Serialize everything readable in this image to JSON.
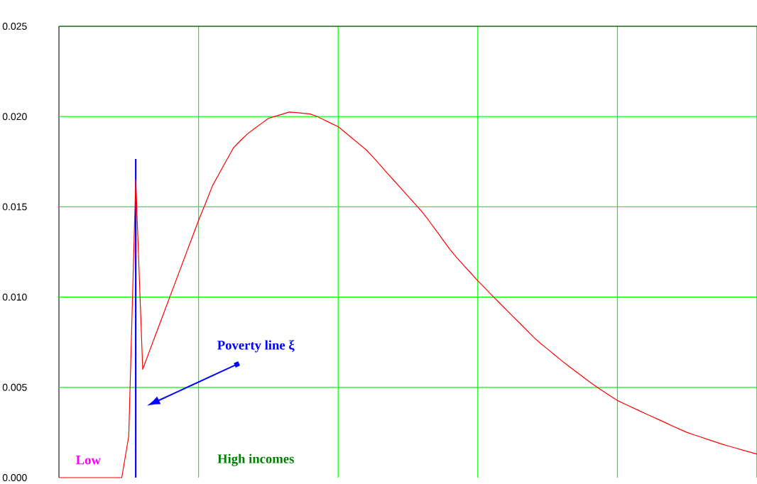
{
  "chart_data": {
    "type": "line",
    "categories": [
      null,
      null,
      null,
      null,
      null,
      null,
      null,
      null,
      null,
      null,
      null,
      null,
      null,
      null,
      null,
      null,
      null,
      null,
      null,
      null,
      null,
      null,
      null,
      null,
      null,
      null,
      null,
      null,
      null,
      null,
      null,
      null,
      null,
      null,
      null,
      null,
      null,
      null,
      null,
      null,
      null,
      null,
      null,
      null,
      null,
      null,
      null,
      null,
      null,
      null,
      null,
      null,
      null,
      null,
      null,
      null,
      null,
      null,
      null,
      null,
      null,
      null,
      null,
      null,
      null,
      null,
      null,
      null,
      null,
      null,
      null,
      null,
      null,
      null,
      null,
      null,
      null,
      null,
      null,
      null,
      null,
      null,
      null,
      null,
      null,
      null,
      null,
      null,
      null,
      null,
      null,
      null,
      null,
      null,
      null,
      null,
      null,
      null,
      null,
      null,
      null
    ],
    "series": [
      {
        "color": "#ff0000",
        "values": [
          0,
          0,
          0,
          0,
          0,
          0,
          0,
          0,
          0,
          0,
          0.0023,
          0.0165,
          0.006,
          0.00704,
          0.00807,
          0.0091,
          0.01013,
          0.01116,
          0.01219,
          0.01322,
          0.01425,
          0.01519,
          0.01617,
          0.01687,
          0.01757,
          0.01827,
          0.01866,
          0.01904,
          0.01933,
          0.01961,
          0.0199,
          0.02001,
          0.02013,
          0.02025,
          0.02022,
          0.02018,
          0.02014,
          0.02,
          0.01981,
          0.01962,
          0.01944,
          0.01912,
          0.0188,
          0.01848,
          0.01816,
          0.01775,
          0.01732,
          0.01688,
          0.01645,
          0.01602,
          0.01559,
          0.01516,
          0.01473,
          0.01423,
          0.0137,
          0.01317,
          0.01264,
          0.01218,
          0.01175,
          0.01133,
          0.0109,
          0.01051,
          0.01011,
          0.00972,
          0.00933,
          0.00894,
          0.00856,
          0.00817,
          0.00778,
          0.00743,
          0.00712,
          0.0068,
          0.00648,
          0.00618,
          0.00589,
          0.0056,
          0.00531,
          0.00503,
          0.00478,
          0.00452,
          0.00427,
          0.00409,
          0.00391,
          0.00373,
          0.00355,
          0.00337,
          0.0032,
          0.00302,
          0.00284,
          0.00267,
          0.0025,
          0.00237,
          0.00224,
          0.00211,
          0.00198,
          0.00185,
          0.00174,
          0.00163,
          0.00152,
          0.00141,
          0.0013
        ]
      },
      {
        "color": "#0000ff",
        "type": "bar",
        "values": [
          null,
          null,
          null,
          null,
          null,
          null,
          null,
          null,
          null,
          null,
          null,
          0.01765,
          null,
          null,
          null,
          null,
          null,
          null,
          null,
          null,
          null,
          null,
          null,
          null,
          null,
          null,
          null,
          null,
          null,
          null,
          null,
          null,
          null,
          null,
          null,
          null,
          null,
          null,
          null,
          null,
          null,
          null,
          null,
          null,
          null,
          null,
          null,
          null,
          null,
          null,
          null,
          null,
          null,
          null,
          null,
          null,
          null,
          null,
          null,
          null,
          null,
          null,
          null,
          null,
          null,
          null,
          null,
          null,
          null,
          null,
          null,
          null,
          null,
          null,
          null,
          null,
          null,
          null,
          null,
          null,
          null,
          null,
          null,
          null,
          null,
          null,
          null,
          null,
          null,
          null,
          null,
          null,
          null,
          null,
          null,
          null,
          null,
          null,
          null,
          null,
          null
        ]
      }
    ],
    "ylim": [
      0,
      0.025
    ],
    "yticks": [
      {
        "value": 0,
        "label": "0.000"
      },
      {
        "value": 0.005,
        "label": "0.005"
      },
      {
        "value": 0.01,
        "label": "0.010"
      },
      {
        "value": 0.015,
        "label": "0.015"
      },
      {
        "value": 0.02,
        "label": "0.020"
      },
      {
        "value": 0.025,
        "label": "0.025"
      }
    ],
    "tick_labels": "y",
    "grid": true,
    "annotations": [
      "Poverty line ξ",
      "Low",
      "High  incomes"
    ]
  }
}
